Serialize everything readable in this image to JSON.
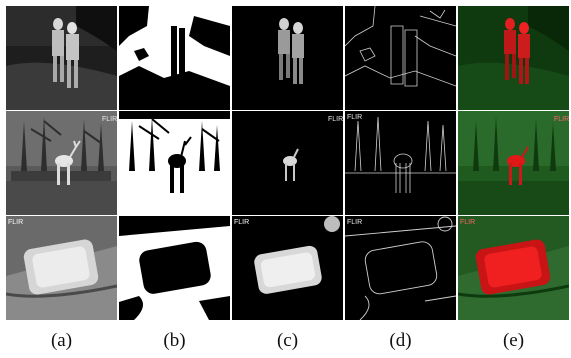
{
  "captions": [
    "(a)",
    "(b)",
    "(c)",
    "(d)",
    "(e)"
  ],
  "watermark": "FLIR",
  "colors": {
    "thermal_dark": "#2a2a2a",
    "mask_white": "#ffffff",
    "edge_gray": "#cfcfcf",
    "overlay_green": "#1c5a1c",
    "overlay_red": "#e01818"
  },
  "rows": [
    {
      "scene": "two people standing outdoors at night"
    },
    {
      "scene": "deer among trees in a snowy field"
    },
    {
      "scene": "warm rectangular object on a surface"
    }
  ]
}
